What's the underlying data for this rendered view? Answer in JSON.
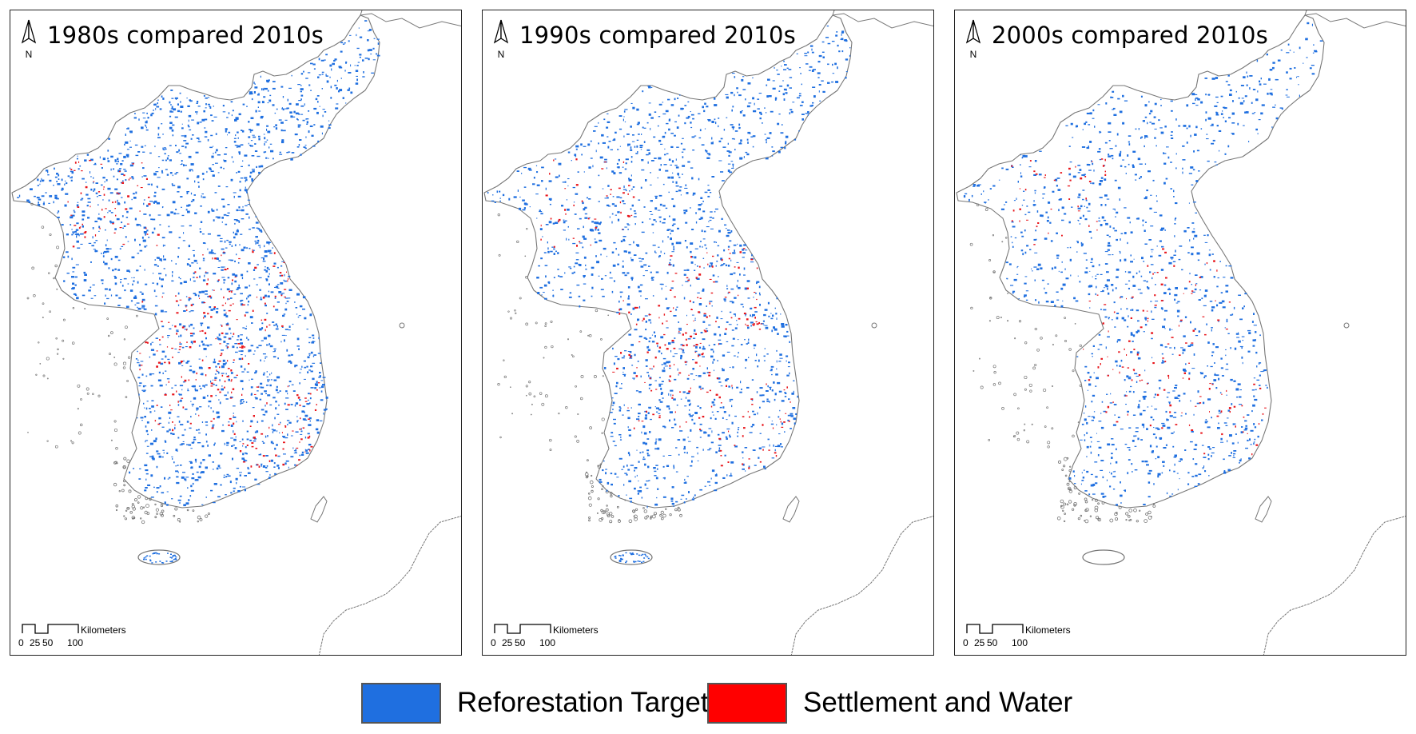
{
  "panels": [
    {
      "title": "1980s compared 2010s",
      "blue_count": 1900,
      "red_count": 300
    },
    {
      "title": "1990s compared 2010s",
      "blue_count": 1550,
      "red_count": 240
    },
    {
      "title": "2000s compared 2010s",
      "blue_count": 1200,
      "red_count": 170
    }
  ],
  "north_label": "N",
  "scale": {
    "unit": "Kilometers",
    "t0": "0",
    "t1": "25",
    "t2": "50",
    "t3": "100"
  },
  "legend": [
    {
      "label": "Reforestation Target",
      "color": "#1f6fe0"
    },
    {
      "label": "Settlement and Water",
      "color": "#ff0000"
    }
  ],
  "colors": {
    "outline": "#777777",
    "blue": "#1f6fe0",
    "red": "#e8151b"
  }
}
